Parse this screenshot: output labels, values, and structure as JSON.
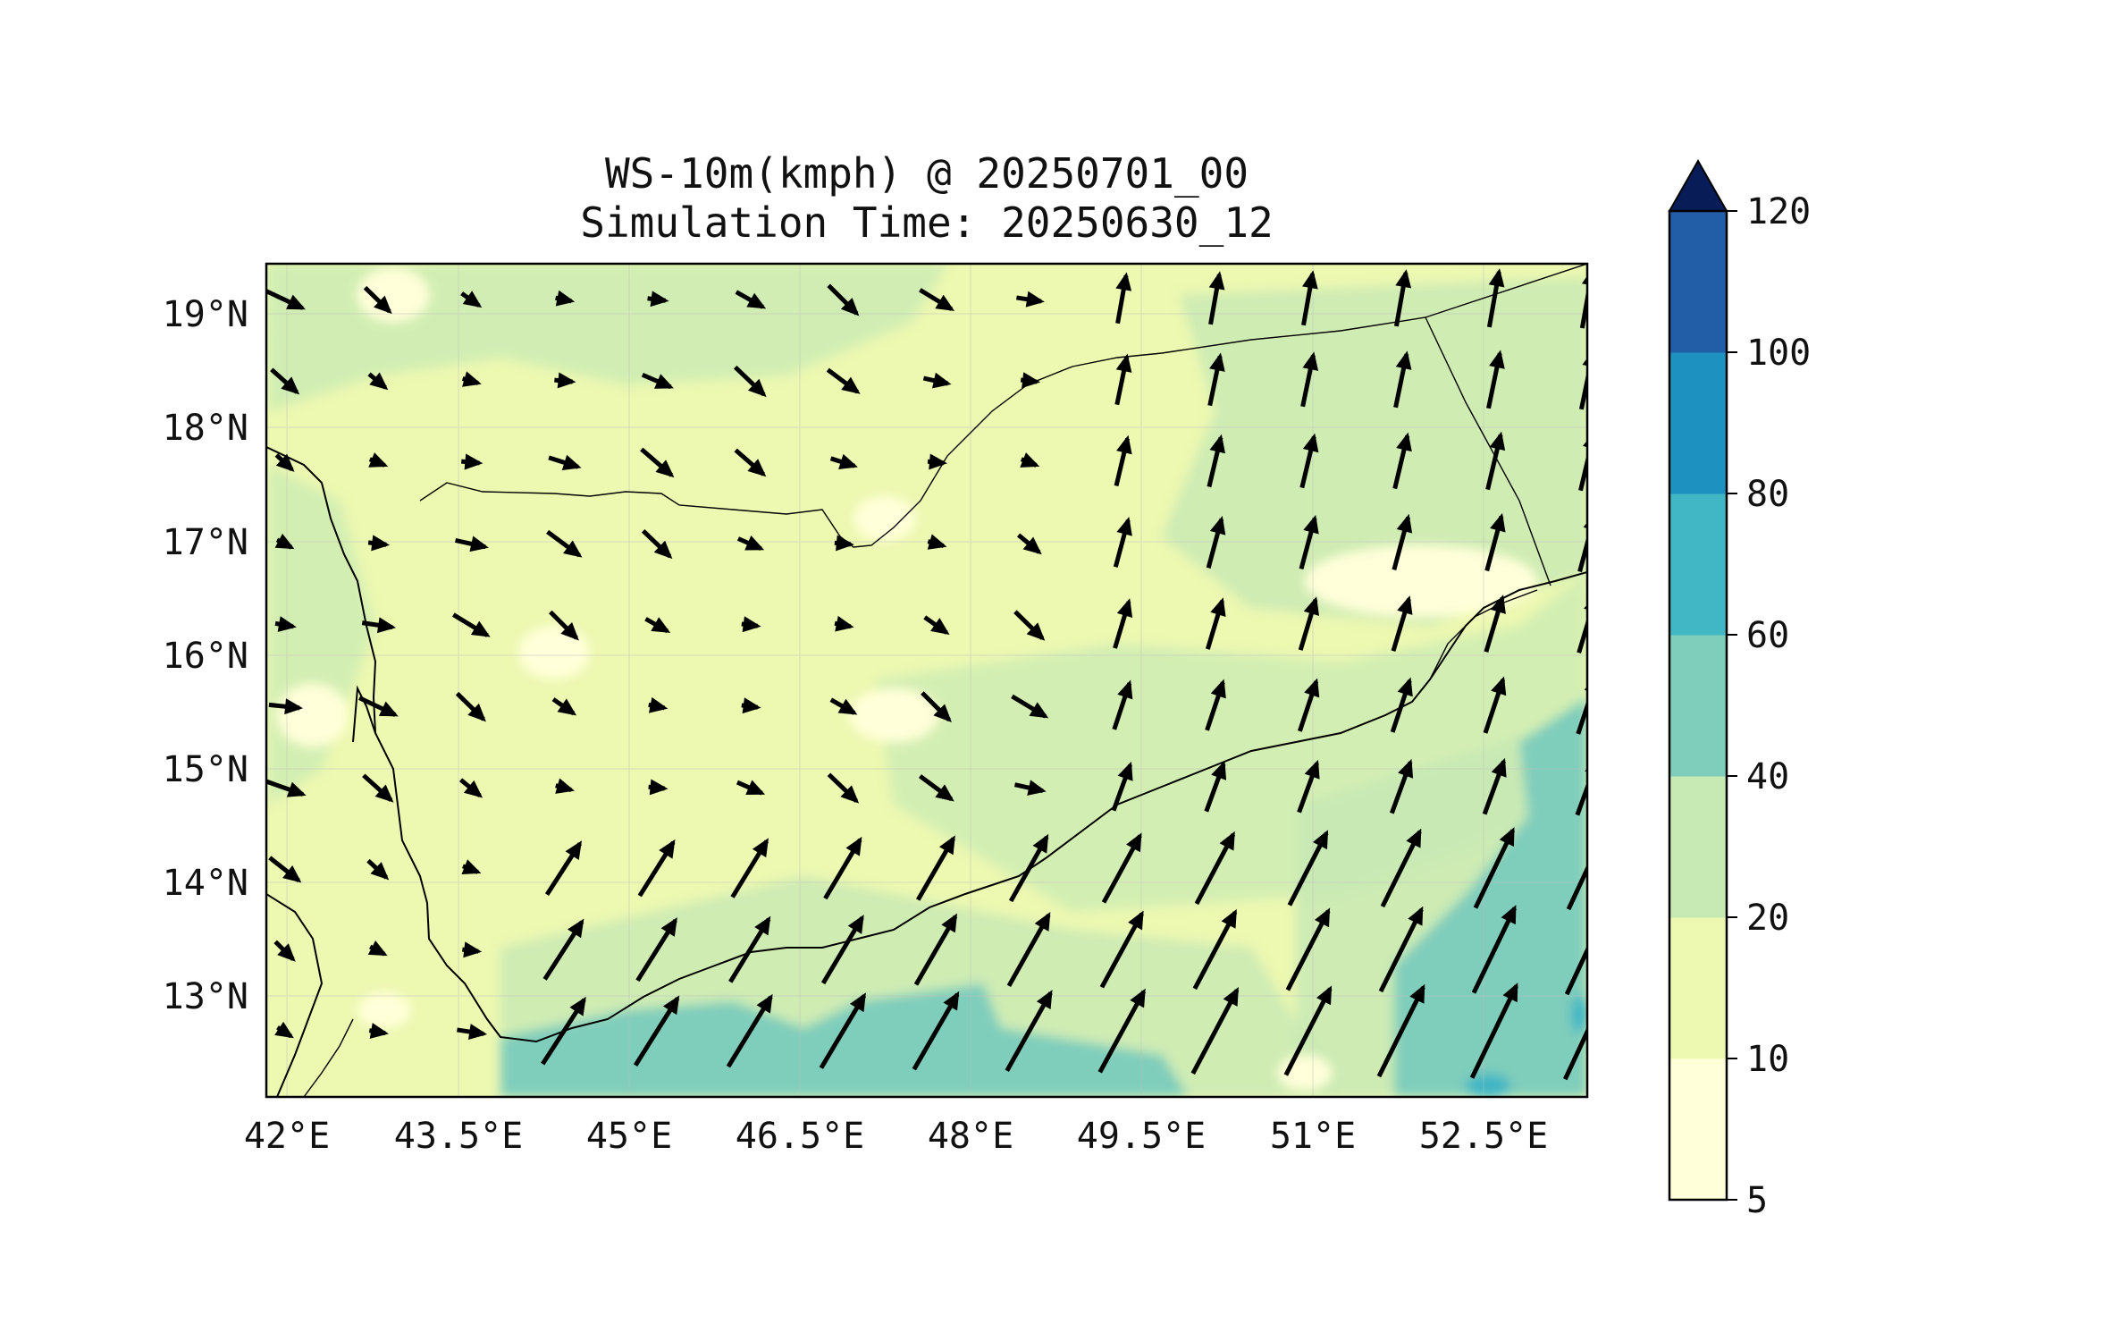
{
  "title": {
    "line1": "WS-10m(kmph) @ 20250701_00",
    "line2": "Simulation Time: 20250630_12"
  },
  "map": {
    "lon_range": [
      41.9,
      53.5
    ],
    "lat_range": [
      12.1,
      19.45
    ],
    "lon_ticks": [
      "42°E",
      "43.5°E",
      "45°E",
      "46.5°E",
      "48°E",
      "49.5°E",
      "51°E",
      "52.5°E"
    ],
    "lat_ticks": [
      "19°N",
      "18°N",
      "17°N",
      "16°N",
      "15°N",
      "14°N",
      "13°N"
    ]
  },
  "colorbar": {
    "levels": [
      "5",
      "10",
      "20",
      "40",
      "60",
      "80",
      "100",
      "120"
    ],
    "colors": [
      "#ffffd9",
      "#edf8b1",
      "#c7e9b4",
      "#7fcdbb",
      "#41b6c4",
      "#1d91c0",
      "#225ea8",
      "#253494"
    ],
    "extend_color": "#081d58"
  },
  "chart_data": {
    "type": "heatmap",
    "variable": "WS-10m(kmph)",
    "valid_time": "20250701_00",
    "simulation_time": "20250630_12",
    "x_ticks_deg_e": [
      42,
      43.5,
      45,
      46.5,
      48,
      49.5,
      51,
      52.5
    ],
    "y_ticks_deg_n": [
      19,
      18,
      17,
      16,
      15,
      14,
      13
    ],
    "contour_levels_kmph": [
      5,
      10,
      20,
      40,
      60,
      80,
      100,
      120
    ],
    "notes": "Filled contours of 10 m wind speed with wind vector arrows; strongest winds (40-60 kmph) in the Gulf of Aden and Arabian Sea south-east, weaker winds (5-20 kmph) over inland Yemen."
  }
}
